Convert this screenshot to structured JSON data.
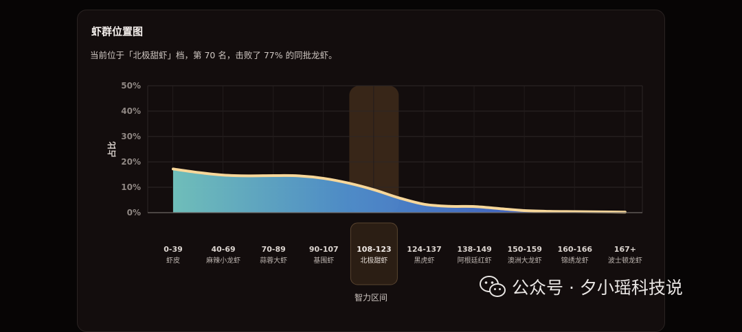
{
  "card": {
    "title": "虾群位置图",
    "subtitle": "当前位于「北极甜虾」档，第 70 名，击败了 77% 的同批龙虾。"
  },
  "chart_data": {
    "type": "area",
    "title": "虾群位置图",
    "ylabel": "占比",
    "xlabel": "智力区间",
    "ylim": [
      0,
      50
    ],
    "yticks": [
      0,
      10,
      20,
      30,
      40,
      50
    ],
    "ytick_suffix": "%",
    "grid": true,
    "categories": [
      {
        "range": "0-39",
        "name": "虾皮"
      },
      {
        "range": "40-69",
        "name": "麻辣小龙虾"
      },
      {
        "range": "70-89",
        "name": "蒜蓉大虾"
      },
      {
        "range": "90-107",
        "name": "基围虾"
      },
      {
        "range": "108-123",
        "name": "北极甜虾"
      },
      {
        "range": "124-137",
        "name": "黑虎虾"
      },
      {
        "range": "138-149",
        "name": "阿根廷红虾"
      },
      {
        "range": "150-159",
        "name": "澳洲大龙虾"
      },
      {
        "range": "160-166",
        "name": "锦绣龙虾"
      },
      {
        "range": "167+",
        "name": "波士顿龙虾"
      }
    ],
    "highlight_category": "108-123",
    "curve": {
      "x": [
        0,
        0.5,
        1.0,
        1.5,
        2.0,
        2.5,
        3.0,
        3.5,
        4.0,
        4.5,
        5.0,
        5.5,
        6.0,
        6.5,
        7.0,
        7.5,
        8.0,
        8.5,
        9.0
      ],
      "y": [
        17.2,
        15.8,
        14.8,
        14.5,
        14.6,
        14.5,
        13.5,
        11.6,
        9.0,
        5.8,
        3.3,
        2.5,
        2.4,
        1.6,
        0.8,
        0.5,
        0.4,
        0.3,
        0.2
      ]
    },
    "colors": {
      "line": "#f7d79a",
      "fill_left": "#74c7c2",
      "fill_mid": "#4f8fd0",
      "fill_right": "#3d4fc4",
      "highlight": "#3a2819"
    }
  },
  "watermark": {
    "text": "公众号 · 夕小瑶科技说",
    "icon": "wechat-icon"
  }
}
